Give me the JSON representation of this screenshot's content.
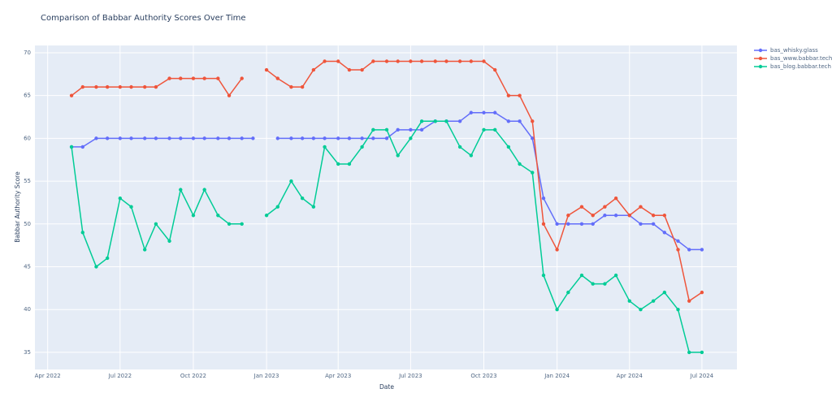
{
  "chart_data": {
    "type": "line",
    "title": "Comparison of Babbar Authority Scores Over Time",
    "x_label": "Date",
    "y_label": "Babbar Authority Score",
    "x": [
      "2022-05-01",
      "2022-05-15",
      "2022-06-01",
      "2022-06-15",
      "2022-07-01",
      "2022-07-15",
      "2022-08-01",
      "2022-08-15",
      "2022-09-01",
      "2022-09-15",
      "2022-10-01",
      "2022-10-15",
      "2022-11-01",
      "2022-11-15",
      "2022-12-01",
      "2022-12-15",
      "2023-01-01",
      "2023-01-15",
      "2023-02-01",
      "2023-02-15",
      "2023-03-01",
      "2023-03-15",
      "2023-04-01",
      "2023-04-15",
      "2023-05-01",
      "2023-05-15",
      "2023-06-01",
      "2023-06-15",
      "2023-07-01",
      "2023-07-15",
      "2023-08-01",
      "2023-08-15",
      "2023-09-01",
      "2023-09-15",
      "2023-10-01",
      "2023-10-15",
      "2023-11-01",
      "2023-11-15",
      "2023-12-01",
      "2023-12-15",
      "2024-01-01",
      "2024-01-15",
      "2024-02-01",
      "2024-02-15",
      "2024-03-01",
      "2024-03-15",
      "2024-04-01",
      "2024-04-15",
      "2024-05-01",
      "2024-05-15",
      "2024-06-01",
      "2024-06-15",
      "2024-07-01"
    ],
    "series": [
      {
        "name": "bas_whisky.glass",
        "color": "#636efa",
        "values": [
          59,
          59,
          60,
          60,
          60,
          60,
          60,
          60,
          60,
          60,
          60,
          60,
          60,
          60,
          60,
          60,
          null,
          60,
          60,
          60,
          60,
          60,
          60,
          60,
          60,
          60,
          60,
          61,
          61,
          61,
          62,
          62,
          62,
          63,
          63,
          63,
          62,
          62,
          60,
          53,
          50,
          50,
          50,
          50,
          51,
          51,
          51,
          50,
          50,
          49,
          48,
          47,
          47
        ]
      },
      {
        "name": "bas_www.babbar.tech",
        "color": "#ef553b",
        "values": [
          65,
          66,
          66,
          66,
          66,
          66,
          66,
          66,
          67,
          67,
          67,
          67,
          67,
          65,
          67,
          null,
          68,
          67,
          66,
          66,
          68,
          69,
          69,
          68,
          68,
          69,
          69,
          69,
          69,
          69,
          69,
          69,
          69,
          69,
          69,
          68,
          65,
          65,
          62,
          50,
          47,
          51,
          52,
          51,
          52,
          53,
          51,
          52,
          51,
          51,
          47,
          41,
          42
        ]
      },
      {
        "name": "bas_blog.babbar.tech",
        "color": "#00cc96",
        "values": [
          59,
          49,
          45,
          46,
          53,
          52,
          47,
          50,
          48,
          54,
          51,
          54,
          51,
          50,
          50,
          null,
          51,
          52,
          55,
          53,
          52,
          59,
          57,
          57,
          59,
          61,
          61,
          58,
          60,
          62,
          62,
          62,
          59,
          58,
          61,
          61,
          59,
          57,
          56,
          44,
          40,
          42,
          44,
          43,
          43,
          44,
          41,
          40,
          41,
          42,
          40,
          35,
          35
        ]
      }
    ],
    "xlim": [
      "2022-03-16",
      "2024-08-14"
    ],
    "xticks": [
      {
        "value": "2022-04-01",
        "label": "Apr 2022"
      },
      {
        "value": "2022-07-01",
        "label": "Jul 2022"
      },
      {
        "value": "2022-10-01",
        "label": "Oct 2022"
      },
      {
        "value": "2023-01-01",
        "label": "Jan 2023"
      },
      {
        "value": "2023-04-01",
        "label": "Apr 2023"
      },
      {
        "value": "2023-07-01",
        "label": "Jul 2023"
      },
      {
        "value": "2023-10-01",
        "label": "Oct 2023"
      },
      {
        "value": "2024-01-01",
        "label": "Jan 2024"
      },
      {
        "value": "2024-04-01",
        "label": "Apr 2024"
      },
      {
        "value": "2024-07-01",
        "label": "Jul 2024"
      }
    ],
    "ylim": [
      33,
      70.85
    ],
    "yticks": [
      35,
      40,
      45,
      50,
      55,
      60,
      65,
      70
    ],
    "grid": true,
    "legend": "right"
  }
}
